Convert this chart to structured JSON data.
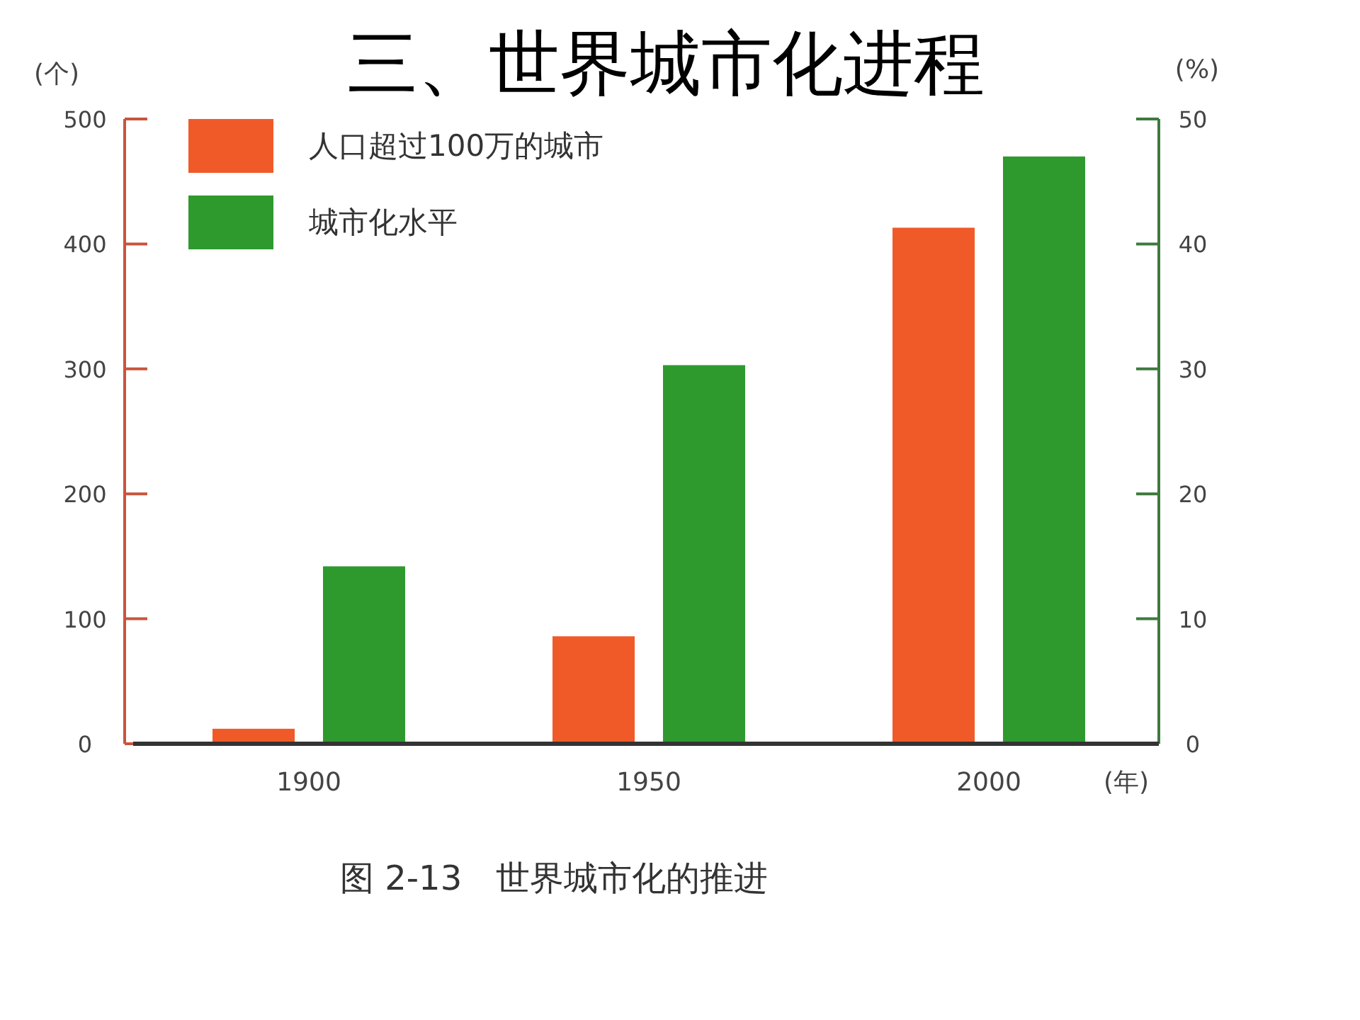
{
  "chart_data": {
    "type": "bar",
    "title": "三、世界城市化进程",
    "xlabel": "(年)",
    "ylabel": "(个)",
    "y2label": "(%)",
    "categories": [
      "1900",
      "1950",
      "2000"
    ],
    "series": [
      {
        "name": "人口超过100万的城市",
        "color": "#f05a28",
        "values": [
          12,
          86,
          413
        ]
      },
      {
        "name": "城市化水平",
        "color": "#2e9a2e",
        "values": [
          14.2,
          30.3,
          47
        ],
        "axis": "y2"
      }
    ],
    "ylim": [
      0,
      500
    ],
    "yticks": [
      0,
      100,
      200,
      300,
      400,
      500
    ],
    "y2lim": [
      0,
      50
    ],
    "y2ticks": [
      0,
      10,
      20,
      30,
      40,
      50
    ],
    "legend": "top left",
    "annotations": [
      "图 2-13　世界城市化的推进"
    ]
  }
}
